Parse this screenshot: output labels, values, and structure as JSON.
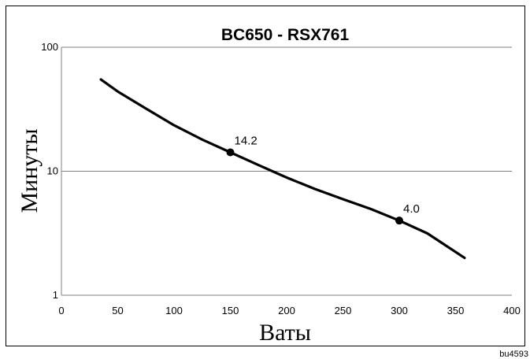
{
  "chart_data": {
    "type": "line",
    "title": "BC650 - RSX761",
    "xlabel": "Ваты",
    "ylabel": "Минуты",
    "xlim": [
      0,
      400
    ],
    "ylim": [
      1,
      100
    ],
    "yscale": "log",
    "grid": "horizontal",
    "x_ticks": [
      "0",
      "50",
      "100",
      "150",
      "200",
      "250",
      "300",
      "350",
      "400"
    ],
    "y_ticks": [
      "1",
      "10",
      "100"
    ],
    "series": [
      {
        "x": [
          35,
          50,
          75,
          100,
          125,
          150,
          175,
          200,
          225,
          250,
          275,
          300,
          325,
          358
        ],
        "y": [
          55,
          44,
          32,
          23.5,
          18,
          14.2,
          11.2,
          8.9,
          7.2,
          5.95,
          4.95,
          4.0,
          3.15,
          2.0
        ]
      }
    ],
    "annotations": [
      {
        "x": 150,
        "y": 14.2,
        "label": "14.2"
      },
      {
        "x": 300,
        "y": 4.0,
        "label": "4.0"
      }
    ]
  },
  "corner_code": "bu4593"
}
